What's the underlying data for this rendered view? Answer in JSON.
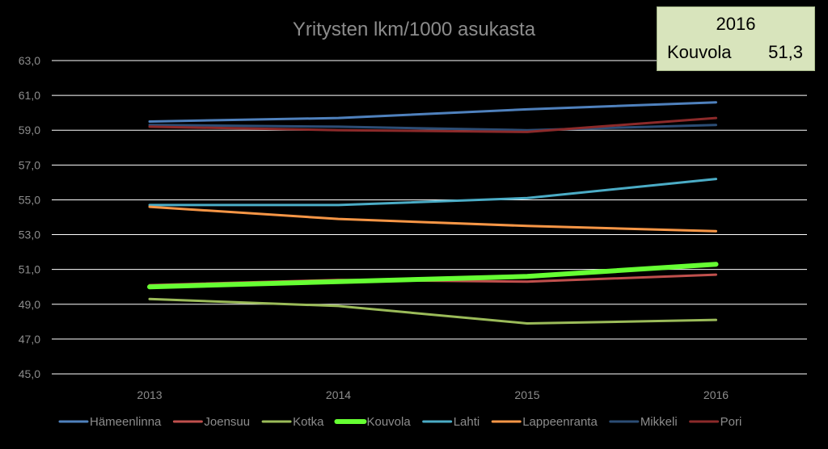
{
  "chart_data": {
    "type": "line",
    "title": "Yritysten lkm/1000 asukasta",
    "xlabel": "",
    "ylabel": "",
    "categories": [
      "2013",
      "2014",
      "2015",
      "2016"
    ],
    "ylim": [
      45,
      63
    ],
    "yticks": [
      "45,0",
      "47,0",
      "49,0",
      "51,0",
      "53,0",
      "55,0",
      "57,0",
      "59,0",
      "61,0",
      "63,0"
    ],
    "grid": true,
    "legend": "bottom",
    "series": [
      {
        "name": "Hämeenlinna",
        "color": "#4f81bd",
        "values": [
          59.5,
          59.7,
          60.2,
          60.6
        ],
        "highlight": false
      },
      {
        "name": "Joensuu",
        "color": "#c0504d",
        "values": [
          50.1,
          50.4,
          50.3,
          50.7
        ],
        "highlight": false
      },
      {
        "name": "Kotka",
        "color": "#9bbb59",
        "values": [
          49.3,
          48.9,
          47.9,
          48.1
        ],
        "highlight": false
      },
      {
        "name": "Kouvola",
        "color": "#66ff33",
        "values": [
          50.0,
          50.3,
          50.6,
          51.3
        ],
        "highlight": true
      },
      {
        "name": "Lahti",
        "color": "#4bacc6",
        "values": [
          54.7,
          54.7,
          55.1,
          56.2
        ],
        "highlight": false
      },
      {
        "name": "Lappeenranta",
        "color": "#f79646",
        "values": [
          54.6,
          53.9,
          53.5,
          53.2
        ],
        "highlight": false
      },
      {
        "name": "Mikkeli",
        "color": "#2c4d75",
        "values": [
          59.3,
          59.2,
          59.0,
          59.3
        ],
        "highlight": false
      },
      {
        "name": "Pori",
        "color": "#8c2a2a",
        "values": [
          59.2,
          59.0,
          58.9,
          59.7
        ],
        "highlight": false
      }
    ]
  },
  "callout": {
    "year": "2016",
    "city": "Kouvola",
    "value": "51,3"
  }
}
